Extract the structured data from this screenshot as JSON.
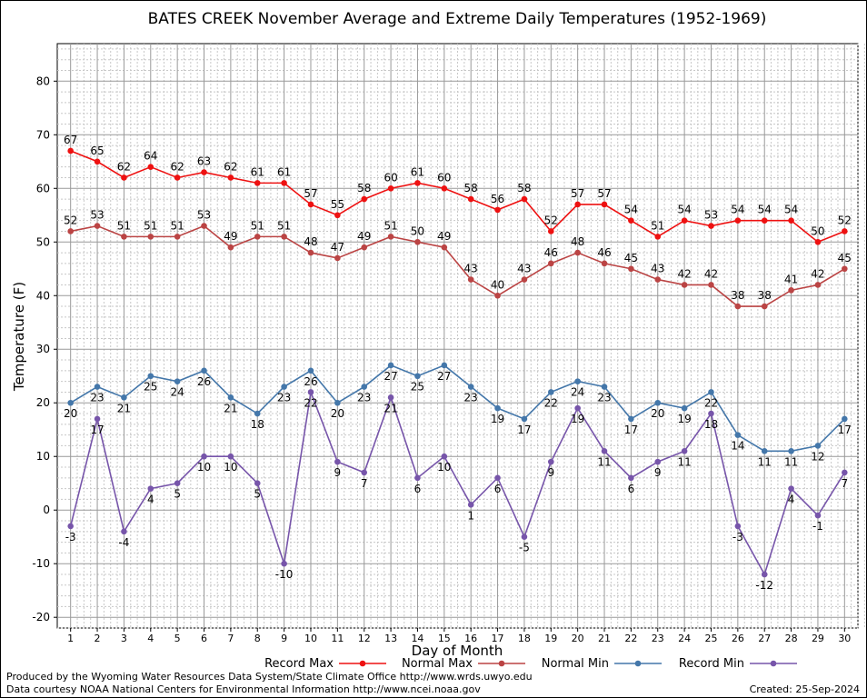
{
  "chart_data": {
    "type": "line",
    "title": "BATES CREEK November Average and Extreme Daily Temperatures (1952-1969)",
    "xlabel": "Day of Month",
    "ylabel": "Temperature (F)",
    "ylim": [
      -22,
      87
    ],
    "xlim": [
      0.5,
      30.5
    ],
    "yticks": [
      -20,
      -10,
      0,
      10,
      20,
      30,
      40,
      50,
      60,
      70,
      80
    ],
    "x": [
      1,
      2,
      3,
      4,
      5,
      6,
      7,
      8,
      9,
      10,
      11,
      12,
      13,
      14,
      15,
      16,
      17,
      18,
      19,
      20,
      21,
      22,
      23,
      24,
      25,
      26,
      27,
      28,
      29,
      30
    ],
    "grid": true,
    "legend_position": "bottom",
    "series": [
      {
        "name": "Record Max",
        "color": "#ee1111",
        "values": [
          67,
          65,
          62,
          64,
          62,
          63,
          62,
          61,
          61,
          57,
          55,
          58,
          60,
          61,
          60,
          58,
          56,
          58,
          52,
          57,
          57,
          54,
          51,
          54,
          53,
          54,
          54,
          54,
          50,
          52
        ]
      },
      {
        "name": "Normal Max",
        "color": "#bb4444",
        "values": [
          52,
          53,
          51,
          51,
          51,
          53,
          49,
          51,
          51,
          48,
          47,
          49,
          51,
          50,
          49,
          43,
          40,
          43,
          46,
          48,
          46,
          45,
          43,
          42,
          42,
          38,
          38,
          41,
          42,
          45
        ]
      },
      {
        "name": "Normal Min",
        "color": "#4477aa",
        "values": [
          20,
          23,
          21,
          25,
          24,
          26,
          21,
          18,
          23,
          26,
          20,
          23,
          27,
          25,
          27,
          23,
          19,
          17,
          22,
          24,
          23,
          17,
          20,
          19,
          22,
          14,
          11,
          11,
          12,
          17
        ]
      },
      {
        "name": "Record Min",
        "color": "#7755aa",
        "values": [
          -3,
          17,
          -4,
          4,
          5,
          10,
          10,
          5,
          -10,
          22,
          9,
          7,
          21,
          6,
          10,
          1,
          6,
          -5,
          9,
          19,
          11,
          6,
          9,
          11,
          18,
          -3,
          -12,
          4,
          -1,
          7
        ]
      }
    ]
  },
  "footer": {
    "produced_by": "Produced by the Wyoming Water Resources Data System/State Climate Office http://www.wrds.uwyo.edu",
    "data_courtesy": "Data courtesy NOAA National Centers for Environmental Information http://www.ncei.noaa.gov",
    "created": "Created:  25-Sep-2024"
  }
}
